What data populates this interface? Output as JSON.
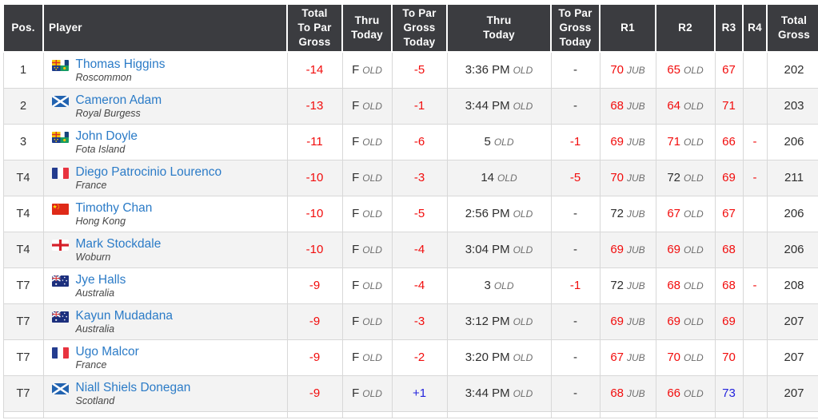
{
  "colors": {
    "header_bg": "#3b3c40",
    "under_par": "#f20d0d",
    "over_par": "#2323dd",
    "link": "#2b7bc7",
    "tag": "#6e6e6e",
    "text": "#2f2f2f",
    "stripe": "#f3f3f3",
    "border": "#d8d8d8"
  },
  "table": {
    "columns": [
      {
        "key": "pos",
        "label": "Pos.",
        "align": "center"
      },
      {
        "key": "player",
        "label": "Player",
        "align": "left"
      },
      {
        "key": "total_to_par_gross",
        "label": "Total\nTo Par\nGross",
        "align": "center"
      },
      {
        "key": "thru_today_1",
        "label": "Thru\nToday",
        "align": "center"
      },
      {
        "key": "to_par_gross_today_1",
        "label": "To Par\nGross\nToday",
        "align": "center"
      },
      {
        "key": "thru_today_2",
        "label": "Thru\nToday",
        "align": "center"
      },
      {
        "key": "to_par_gross_today_2",
        "label": "To Par\nGross\nToday",
        "align": "center"
      },
      {
        "key": "r1",
        "label": "R1",
        "align": "center"
      },
      {
        "key": "r2",
        "label": "R2",
        "align": "center"
      },
      {
        "key": "r3",
        "label": "R3",
        "align": "center"
      },
      {
        "key": "r4",
        "label": "R4",
        "align": "center"
      },
      {
        "key": "total_gross",
        "label": "Total\nGross",
        "align": "center"
      }
    ],
    "rows": [
      {
        "pos": "1",
        "flag": "ireland-four-provinces",
        "name": "Thomas Higgins",
        "club": "Roscommon",
        "cells": [
          {
            "v": "-14",
            "c": "red"
          },
          {
            "v": "F",
            "tag": "OLD"
          },
          {
            "v": "-5",
            "c": "red"
          },
          {
            "v": "3:36 PM",
            "tag": "OLD"
          },
          {
            "v": "-"
          },
          {
            "v": "70",
            "tag": "JUB",
            "c": "red"
          },
          {
            "v": "65",
            "tag": "OLD",
            "c": "red"
          },
          {
            "v": "67",
            "c": "red"
          },
          {
            "v": ""
          },
          {
            "v": "202"
          }
        ]
      },
      {
        "pos": "2",
        "flag": "scotland",
        "name": "Cameron Adam",
        "club": "Royal Burgess",
        "cells": [
          {
            "v": "-13",
            "c": "red"
          },
          {
            "v": "F",
            "tag": "OLD"
          },
          {
            "v": "-1",
            "c": "red"
          },
          {
            "v": "3:44 PM",
            "tag": "OLD"
          },
          {
            "v": "-"
          },
          {
            "v": "68",
            "tag": "JUB",
            "c": "red"
          },
          {
            "v": "64",
            "tag": "OLD",
            "c": "red"
          },
          {
            "v": "71",
            "c": "red"
          },
          {
            "v": ""
          },
          {
            "v": "203"
          }
        ]
      },
      {
        "pos": "3",
        "flag": "ireland-four-provinces",
        "name": "John Doyle",
        "club": "Fota Island",
        "cells": [
          {
            "v": "-11",
            "c": "red"
          },
          {
            "v": "F",
            "tag": "OLD"
          },
          {
            "v": "-6",
            "c": "red"
          },
          {
            "v": "5",
            "tag": "OLD"
          },
          {
            "v": "-1",
            "c": "red"
          },
          {
            "v": "69",
            "tag": "JUB",
            "c": "red"
          },
          {
            "v": "71",
            "tag": "OLD",
            "c": "red"
          },
          {
            "v": "66",
            "c": "red"
          },
          {
            "v": "-",
            "c": "red"
          },
          {
            "v": "206"
          }
        ]
      },
      {
        "pos": "T4",
        "flag": "france",
        "name": "Diego Patrocinio Lourenco",
        "club": "France",
        "cells": [
          {
            "v": "-10",
            "c": "red"
          },
          {
            "v": "F",
            "tag": "OLD"
          },
          {
            "v": "-3",
            "c": "red"
          },
          {
            "v": "14",
            "tag": "OLD"
          },
          {
            "v": "-5",
            "c": "red"
          },
          {
            "v": "70",
            "tag": "JUB",
            "c": "red"
          },
          {
            "v": "72",
            "tag": "OLD"
          },
          {
            "v": "69",
            "c": "red"
          },
          {
            "v": "-",
            "c": "red"
          },
          {
            "v": "211"
          }
        ]
      },
      {
        "pos": "T4",
        "flag": "china",
        "name": "Timothy Chan",
        "club": "Hong Kong",
        "cells": [
          {
            "v": "-10",
            "c": "red"
          },
          {
            "v": "F",
            "tag": "OLD"
          },
          {
            "v": "-5",
            "c": "red"
          },
          {
            "v": "2:56 PM",
            "tag": "OLD"
          },
          {
            "v": "-"
          },
          {
            "v": "72",
            "tag": "JUB"
          },
          {
            "v": "67",
            "tag": "OLD",
            "c": "red"
          },
          {
            "v": "67",
            "c": "red"
          },
          {
            "v": ""
          },
          {
            "v": "206"
          }
        ]
      },
      {
        "pos": "T4",
        "flag": "england",
        "name": "Mark Stockdale",
        "club": "Woburn",
        "cells": [
          {
            "v": "-10",
            "c": "red"
          },
          {
            "v": "F",
            "tag": "OLD"
          },
          {
            "v": "-4",
            "c": "red"
          },
          {
            "v": "3:04 PM",
            "tag": "OLD"
          },
          {
            "v": "-"
          },
          {
            "v": "69",
            "tag": "JUB",
            "c": "red"
          },
          {
            "v": "69",
            "tag": "OLD",
            "c": "red"
          },
          {
            "v": "68",
            "c": "red"
          },
          {
            "v": ""
          },
          {
            "v": "206"
          }
        ]
      },
      {
        "pos": "T7",
        "flag": "australia",
        "name": "Jye Halls",
        "club": "Australia",
        "cells": [
          {
            "v": "-9",
            "c": "red"
          },
          {
            "v": "F",
            "tag": "OLD"
          },
          {
            "v": "-4",
            "c": "red"
          },
          {
            "v": "3",
            "tag": "OLD"
          },
          {
            "v": "-1",
            "c": "red"
          },
          {
            "v": "72",
            "tag": "JUB"
          },
          {
            "v": "68",
            "tag": "OLD",
            "c": "red"
          },
          {
            "v": "68",
            "c": "red"
          },
          {
            "v": "-",
            "c": "red"
          },
          {
            "v": "208"
          }
        ]
      },
      {
        "pos": "T7",
        "flag": "australia",
        "name": "Kayun Mudadana",
        "club": "Australia",
        "cells": [
          {
            "v": "-9",
            "c": "red"
          },
          {
            "v": "F",
            "tag": "OLD"
          },
          {
            "v": "-3",
            "c": "red"
          },
          {
            "v": "3:12 PM",
            "tag": "OLD"
          },
          {
            "v": "-"
          },
          {
            "v": "69",
            "tag": "JUB",
            "c": "red"
          },
          {
            "v": "69",
            "tag": "OLD",
            "c": "red"
          },
          {
            "v": "69",
            "c": "red"
          },
          {
            "v": ""
          },
          {
            "v": "207"
          }
        ]
      },
      {
        "pos": "T7",
        "flag": "france",
        "name": "Ugo Malcor",
        "club": "France",
        "cells": [
          {
            "v": "-9",
            "c": "red"
          },
          {
            "v": "F",
            "tag": "OLD"
          },
          {
            "v": "-2",
            "c": "red"
          },
          {
            "v": "3:20 PM",
            "tag": "OLD"
          },
          {
            "v": "-"
          },
          {
            "v": "67",
            "tag": "JUB",
            "c": "red"
          },
          {
            "v": "70",
            "tag": "OLD",
            "c": "red"
          },
          {
            "v": "70",
            "c": "red"
          },
          {
            "v": ""
          },
          {
            "v": "207"
          }
        ]
      },
      {
        "pos": "T7",
        "flag": "scotland",
        "name": "Niall Shiels Donegan",
        "club": "Scotland",
        "cells": [
          {
            "v": "-9",
            "c": "red"
          },
          {
            "v": "F",
            "tag": "OLD"
          },
          {
            "v": "+1",
            "c": "blue"
          },
          {
            "v": "3:44 PM",
            "tag": "OLD"
          },
          {
            "v": "-"
          },
          {
            "v": "68",
            "tag": "JUB",
            "c": "red"
          },
          {
            "v": "66",
            "tag": "OLD",
            "c": "red"
          },
          {
            "v": "73",
            "c": "blue"
          },
          {
            "v": ""
          },
          {
            "v": "207"
          }
        ]
      }
    ],
    "partial_row_visible": true
  }
}
